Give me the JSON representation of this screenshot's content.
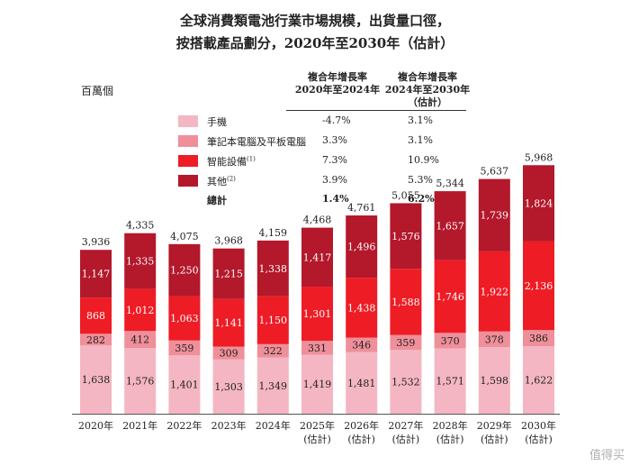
{
  "title_line1": "全球消費類電池行業市場規模，出貨量口徑，",
  "title_line2": "按搭載產品劃分，2020年至2030年（估計）",
  "unit": "百萬個",
  "cagr_header1_line1": "複合年增長率",
  "cagr_header1_line2": "2020年至2024年",
  "cagr_header2_line1": "複合年增長率",
  "cagr_header2_line2": "2024年至2030年",
  "cagr_header2_line3": "（估計）",
  "legend": [
    {
      "name": "手機",
      "cagr1": "-4.7%",
      "cagr2": "3.1%",
      "color": "#f4b6c2"
    },
    {
      "name": "筆記本電腦及平板電腦",
      "cagr1": "3.3%",
      "cagr2": "3.1%",
      "color": "#ef8f99"
    },
    {
      "name": "智能設備",
      "sup": "(1)",
      "cagr1": "7.3%",
      "cagr2": "10.9%",
      "color": "#ee1c25"
    },
    {
      "name": "其他",
      "sup": "(2)",
      "cagr1": "3.9%",
      "cagr2": "5.3%",
      "color": "#b3182b"
    }
  ],
  "total": {
    "name": "總計",
    "cagr1": "1.4%",
    "cagr2": "6.2%"
  },
  "watermark": "值得买",
  "chart_data": {
    "type": "bar",
    "stacked": true,
    "categories": [
      "2020年",
      "2021年",
      "2022年",
      "2023年",
      "2024年",
      "2025年",
      "2026年",
      "2027年",
      "2028年",
      "2029年",
      "2030年"
    ],
    "category_sublabels": [
      "",
      "",
      "",
      "",
      "",
      "(估計)",
      "(估計)",
      "(估計)",
      "(估計)",
      "(估計)",
      "(估計)"
    ],
    "series": [
      {
        "name": "手機",
        "values": [
          1638,
          1576,
          1401,
          1303,
          1349,
          1419,
          1481,
          1532,
          1571,
          1598,
          1622
        ],
        "color": "#f4b6c2"
      },
      {
        "name": "筆記本電腦及平板電腦",
        "values": [
          282,
          412,
          359,
          309,
          322,
          331,
          346,
          359,
          370,
          378,
          386
        ],
        "color": "#ef8f99"
      },
      {
        "name": "智能設備",
        "values": [
          868,
          1012,
          1063,
          1141,
          1150,
          1301,
          1438,
          1588,
          1746,
          1922,
          2136
        ],
        "color": "#ee1c25"
      },
      {
        "name": "其他",
        "values": [
          1147,
          1335,
          1250,
          1215,
          1338,
          1417,
          1496,
          1576,
          1657,
          1739,
          1824
        ],
        "color": "#b3182b"
      }
    ],
    "totals": [
      3936,
      4335,
      4075,
      3968,
      4159,
      4468,
      4761,
      5055,
      5344,
      5637,
      5968
    ],
    "total_labels": [
      "3,936",
      "4,335",
      "4,075",
      "3,968",
      "4,159",
      "4,468",
      "4,761",
      "5,055",
      "5,344",
      "5,637",
      "5,968"
    ],
    "value_labels": [
      [
        "1,638",
        "1,576",
        "1,401",
        "1,303",
        "1,349",
        "1,419",
        "1,481",
        "1,532",
        "1,571",
        "1,598",
        "1,622"
      ],
      [
        "282",
        "412",
        "359",
        "309",
        "322",
        "331",
        "346",
        "359",
        "370",
        "378",
        "386"
      ],
      [
        "868",
        "1,012",
        "1,063",
        "1,141",
        "1,150",
        "1,301",
        "1,438",
        "1,588",
        "1,746",
        "1,922",
        "2,136"
      ],
      [
        "1,147",
        "1,335",
        "1,250",
        "1,215",
        "1,338",
        "1,417",
        "1,496",
        "1,576",
        "1,657",
        "1,739",
        "1,824"
      ]
    ],
    "ylabel": "百萬個",
    "grid": false
  }
}
